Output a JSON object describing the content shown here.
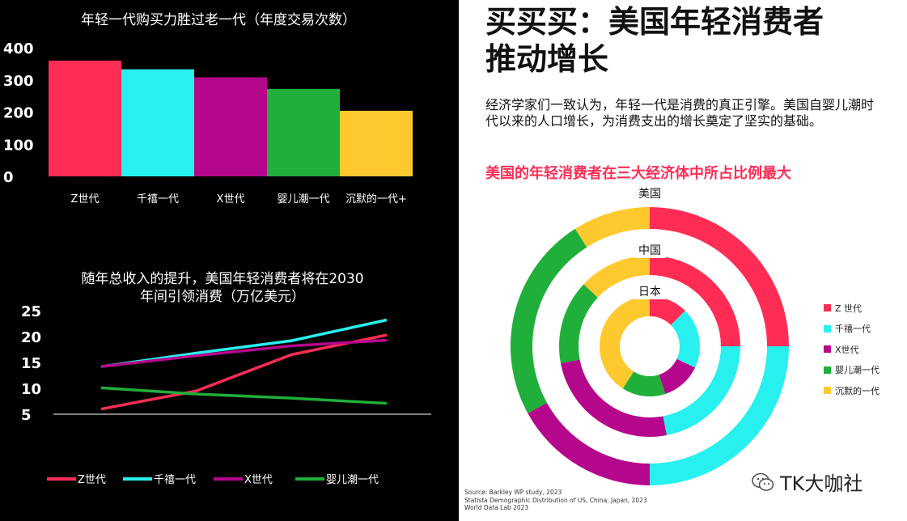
{
  "headline": {
    "line1": "买买买：美国年轻消费者",
    "line2": "推动增长"
  },
  "intro": "经济学家们一致认为，年轻一代是消费的真正引擎。美国自婴儿潮时代以来的人口增长，为消费支出的增长奠定了坚实的基础。",
  "sources": [
    "Source: Barkley WP study, 2023",
    "Statista Demographic Distribution of US, China, Japan, 2023",
    "World Data Lab 2023"
  ],
  "brand": {
    "name": "TK大咖社",
    "icon": "wechat-icon"
  },
  "colors": {
    "genz": "#ff2d55",
    "millennial": "#28f0ee",
    "genx": "#b5078c",
    "boomer": "#1faf3a",
    "silent": "#fdc92f"
  },
  "chart_data": [
    {
      "type": "bar",
      "title": "年轻一代购买力胜过老一代（年度交易次数）",
      "categories": [
        "Z世代",
        "千禧一代",
        "X世代",
        "婴儿潮一代",
        "沉默的一代+"
      ],
      "values": [
        360,
        333,
        308,
        272,
        204
      ],
      "ylim": [
        0,
        400
      ],
      "yticks": [
        "0",
        "100",
        "200",
        "300",
        "400"
      ],
      "colors": [
        "#ff2d55",
        "#28f0ee",
        "#b5078c",
        "#1faf3a",
        "#fdc92f"
      ],
      "grid": false
    },
    {
      "type": "line",
      "title_line1": "随年总收入的提升，美国年轻消费者将在2030",
      "title_line2": "年间引领消费（万亿美元）",
      "ylim": [
        5,
        25
      ],
      "yticks": [
        "5",
        "10",
        "15",
        "20",
        "25"
      ],
      "legend_position": "bottom",
      "grid": false,
      "series": [
        {
          "name": "Z世代",
          "color": "#ff2d55",
          "x": [
            0,
            1,
            2,
            3
          ],
          "values": [
            6,
            9.5,
            16.5,
            20.3
          ]
        },
        {
          "name": "千禧一代",
          "color": "#28f0ee",
          "x": [
            0,
            1,
            2,
            3
          ],
          "values": [
            14.2,
            16.8,
            19.2,
            23.2
          ]
        },
        {
          "name": "X世代",
          "color": "#b5078c",
          "x": [
            0,
            1,
            2,
            3
          ],
          "values": [
            14.2,
            16.3,
            18.2,
            19.3
          ]
        },
        {
          "name": "婴儿潮一代",
          "color": "#1faf3a",
          "x": [
            0,
            1,
            2,
            3
          ],
          "values": [
            10.1,
            8.9,
            8.1,
            7.1
          ]
        }
      ]
    },
    {
      "type": "pie",
      "title": "美国的年轻消费者在三大经济体中所占比例最大",
      "legend": [
        {
          "name": "Z 世代",
          "color": "#ff2d55"
        },
        {
          "name": "千禧一代",
          "color": "#28f0ee"
        },
        {
          "name": "X世代",
          "color": "#b5078c"
        },
        {
          "name": "婴儿潮一代",
          "color": "#1faf3a"
        },
        {
          "name": "沉默的一代",
          "color": "#fdc92f"
        }
      ],
      "rings": [
        {
          "label": "美国",
          "values": [
            25,
            25,
            17,
            24,
            9
          ]
        },
        {
          "label": "中国",
          "values": [
            25,
            22,
            25,
            15,
            13
          ]
        },
        {
          "label": "日本",
          "values": [
            12.5,
            19.5,
            13,
            14,
            41
          ]
        }
      ]
    }
  ]
}
